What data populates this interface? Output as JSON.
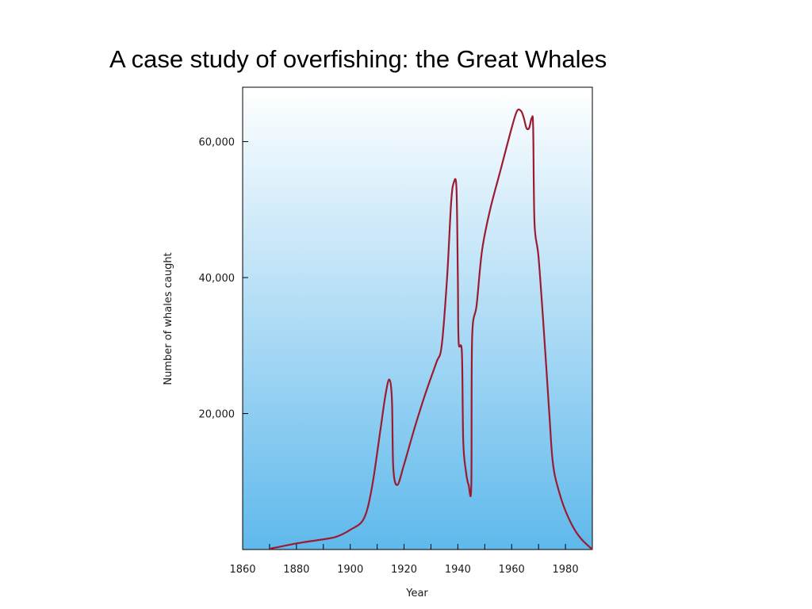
{
  "slide": {
    "title": "A case study of overfishing: the Great Whales"
  },
  "chart_data": {
    "type": "line",
    "title": "",
    "xlabel": "Year",
    "ylabel": "Number of whales caught",
    "xlim": [
      1860,
      1990
    ],
    "ylim": [
      0,
      68000
    ],
    "x_ticks": [
      1860,
      1880,
      1900,
      1920,
      1940,
      1960,
      1980
    ],
    "x_tick_labels": [
      "1860",
      "1880",
      "1900",
      "1920",
      "1940",
      "1960",
      "1980"
    ],
    "y_ticks": [
      20000,
      40000,
      60000
    ],
    "y_tick_labels": [
      "20,000",
      "40,000",
      "60,000"
    ],
    "grid": false,
    "legend": "none",
    "colors": {
      "line": "#9b1b30",
      "bg_top": "#ffffff",
      "bg_bottom": "#5fb9ec",
      "frame": "#000000"
    },
    "series": [
      {
        "x": [
          1870,
          1880,
          1890,
          1895,
          1900,
          1905,
          1908,
          1911,
          1913,
          1914.5,
          1915.5,
          1916,
          1917.5,
          1920,
          1924,
          1928,
          1932,
          1934,
          1936,
          1937.5,
          1938.5,
          1939.5,
          1940,
          1940.3,
          1941.5,
          1942,
          1943,
          1944,
          1945,
          1945.3,
          1947,
          1949,
          1952,
          1956,
          1960,
          1962,
          1963.5,
          1964.5,
          1965.5,
          1966.5,
          1967.5,
          1968,
          1968.5,
          1970,
          1972,
          1974,
          1975,
          1976,
          1978,
          1980,
          1983,
          1986,
          1990
        ],
        "y": [
          100,
          900,
          1500,
          1900,
          2900,
          4500,
          9000,
          17000,
          22500,
          25000,
          22000,
          12000,
          9500,
          12500,
          18000,
          23000,
          27500,
          30000,
          40000,
          51000,
          54000,
          53000,
          40000,
          30500,
          29000,
          16000,
          11500,
          9500,
          9500,
          31000,
          36000,
          44000,
          50000,
          56000,
          62000,
          64500,
          64500,
          63500,
          62000,
          62000,
          63500,
          62000,
          48000,
          43000,
          32000,
          20000,
          14000,
          11000,
          8000,
          5700,
          3200,
          1500,
          0
        ]
      }
    ]
  }
}
